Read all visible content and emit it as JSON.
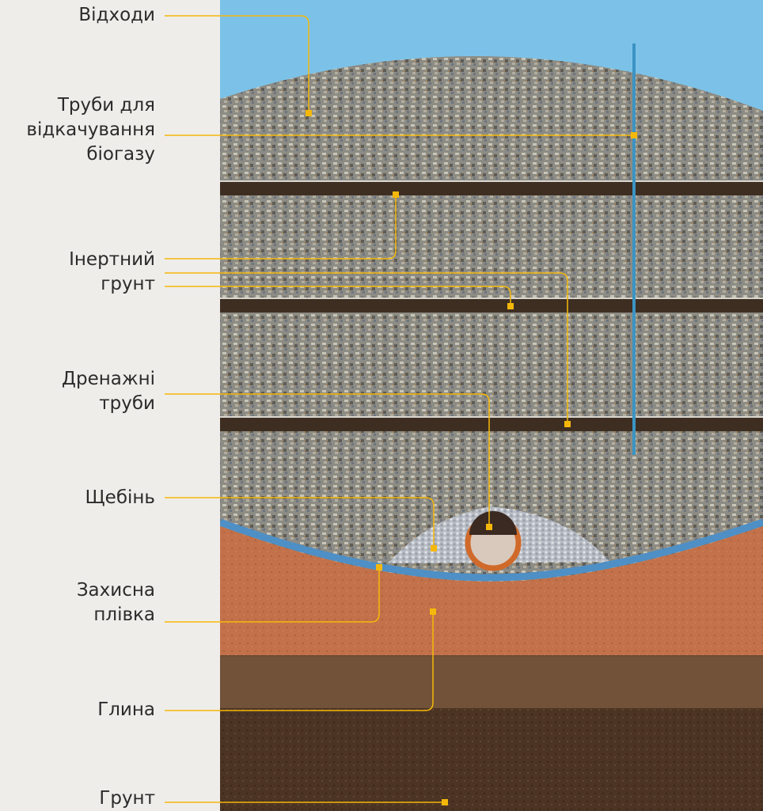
{
  "labels": {
    "waste": "Відходи",
    "biogas_line1": "Труби для",
    "biogas_line2": "відкачування",
    "biogas_line3": "біогазу",
    "inert_line1": "Інертний",
    "inert_line2": "грунт",
    "drainage_line1": "Дренажні",
    "drainage_line2": "труби",
    "gravel": "Щебінь",
    "membrane_line1": "Захисна",
    "membrane_line2": "плівка",
    "clay": "Глина",
    "soil": "Грунт"
  },
  "colors": {
    "sky": "#7cc2e8",
    "waste": "#8c8c82",
    "soil_layer": "#3e2e22",
    "clay": "#c2714a",
    "ground": "#4a3322",
    "membrane": "#4e8fc6",
    "pipe": "#3b94c3",
    "callout": "#f5b80a",
    "panel": "#efedea"
  }
}
